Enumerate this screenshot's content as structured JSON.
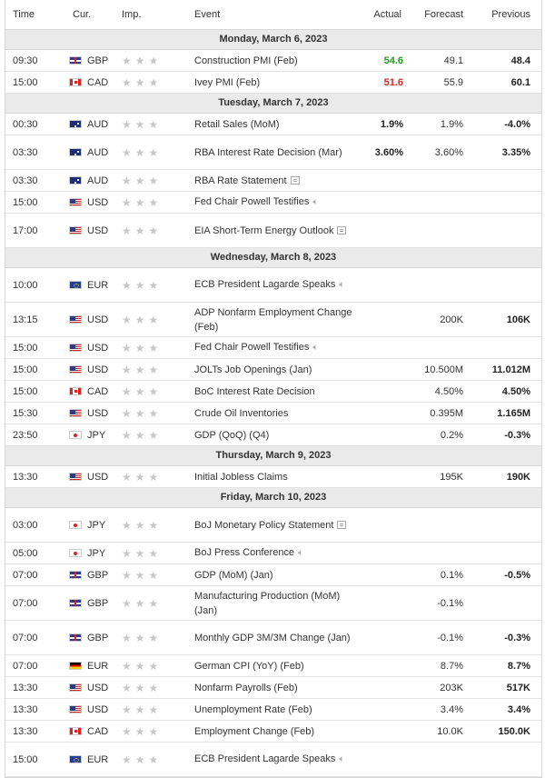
{
  "header": {
    "time": "Time",
    "cur": "Cur.",
    "imp": "Imp.",
    "event": "Event",
    "actual": "Actual",
    "forecast": "Forecast",
    "previous": "Previous"
  },
  "days": [
    {
      "label": "Monday, March 6, 2023",
      "rows": [
        {
          "time": "09:30",
          "cur": "GBP",
          "flag": "gb",
          "event": "Construction PMI (Feb)",
          "actual": "54.6",
          "actual_color": "#1f9d1f",
          "forecast": "49.1",
          "previous": "48.4"
        },
        {
          "time": "15:00",
          "cur": "CAD",
          "flag": "ca",
          "event": "Ivey PMI (Feb)",
          "actual": "51.6",
          "actual_color": "#d42525",
          "forecast": "55.9",
          "previous": "60.1"
        }
      ]
    },
    {
      "label": "Tuesday, March 7, 2023",
      "rows": [
        {
          "time": "00:30",
          "cur": "AUD",
          "flag": "au",
          "event": "Retail Sales (MoM)",
          "actual": "1.9%",
          "forecast": "1.9%",
          "previous": "-4.0%"
        },
        {
          "time": "03:30",
          "cur": "AUD",
          "flag": "au",
          "event": "RBA Interest Rate Decision (Mar)",
          "actual": "3.60%",
          "forecast": "3.60%",
          "previous": "3.35%"
        },
        {
          "time": "03:30",
          "cur": "AUD",
          "flag": "au",
          "event": "RBA Rate Statement",
          "doc": true
        },
        {
          "time": "15:00",
          "cur": "USD",
          "flag": "us",
          "event": "Fed Chair Powell Testifies",
          "speech": true
        },
        {
          "time": "17:00",
          "cur": "USD",
          "flag": "us",
          "event": "EIA Short-Term Energy Outlook",
          "doc": true
        }
      ]
    },
    {
      "label": "Wednesday, March 8, 2023",
      "rows": [
        {
          "time": "10:00",
          "cur": "EUR",
          "flag": "eu",
          "event": "ECB President Lagarde Speaks",
          "speech": true
        },
        {
          "time": "13:15",
          "cur": "USD",
          "flag": "us",
          "event": "ADP Nonfarm Employment Change (Feb)",
          "forecast": "200K",
          "previous": "106K"
        },
        {
          "time": "15:00",
          "cur": "USD",
          "flag": "us",
          "event": "Fed Chair Powell Testifies",
          "speech": true
        },
        {
          "time": "15:00",
          "cur": "USD",
          "flag": "us",
          "event": "JOLTs Job Openings (Jan)",
          "forecast": "10.500M",
          "previous": "11.012M"
        },
        {
          "time": "15:00",
          "cur": "CAD",
          "flag": "ca",
          "event": "BoC Interest Rate Decision",
          "forecast": "4.50%",
          "previous": "4.50%"
        },
        {
          "time": "15:30",
          "cur": "USD",
          "flag": "us",
          "event": "Crude Oil Inventories",
          "forecast": "0.395M",
          "previous": "1.165M"
        },
        {
          "time": "23:50",
          "cur": "JPY",
          "flag": "jp",
          "event": "GDP (QoQ) (Q4)",
          "forecast": "0.2%",
          "previous": "-0.3%"
        }
      ]
    },
    {
      "label": "Thursday, March 9, 2023",
      "rows": [
        {
          "time": "13:30",
          "cur": "USD",
          "flag": "us",
          "event": "Initial Jobless Claims",
          "forecast": "195K",
          "previous": "190K"
        }
      ]
    },
    {
      "label": "Friday, March 10, 2023",
      "rows": [
        {
          "time": "03:00",
          "cur": "JPY",
          "flag": "jp",
          "event": "BoJ Monetary Policy Statement",
          "doc": true
        },
        {
          "time": "05:00",
          "cur": "JPY",
          "flag": "jp",
          "event": "BoJ Press Conference",
          "speech": true
        },
        {
          "time": "07:00",
          "cur": "GBP",
          "flag": "gb",
          "event": "GDP (MoM) (Jan)",
          "forecast": "0.1%",
          "previous": "-0.5%"
        },
        {
          "time": "07:00",
          "cur": "GBP",
          "flag": "gb",
          "event": "Manufacturing Production (MoM) (Jan)",
          "forecast": "-0.1%"
        },
        {
          "time": "07:00",
          "cur": "GBP",
          "flag": "gb",
          "event": "Monthly GDP 3M/3M Change (Jan)",
          "forecast": "-0.1%",
          "previous": "-0.3%"
        },
        {
          "time": "07:00",
          "cur": "EUR",
          "flag": "de",
          "event": "German CPI (YoY) (Feb)",
          "forecast": "8.7%",
          "previous": "8.7%"
        },
        {
          "time": "13:30",
          "cur": "USD",
          "flag": "us",
          "event": "Nonfarm Payrolls (Feb)",
          "forecast": "203K",
          "previous": "517K"
        },
        {
          "time": "13:30",
          "cur": "USD",
          "flag": "us",
          "event": "Unemployment Rate (Feb)",
          "forecast": "3.4%",
          "previous": "3.4%"
        },
        {
          "time": "13:30",
          "cur": "CAD",
          "flag": "ca",
          "event": "Employment Change (Feb)",
          "forecast": "10.0K",
          "previous": "150.0K"
        },
        {
          "time": "15:00",
          "cur": "EUR",
          "flag": "eu",
          "event": "ECB President Lagarde Speaks",
          "speech": true
        }
      ]
    }
  ]
}
